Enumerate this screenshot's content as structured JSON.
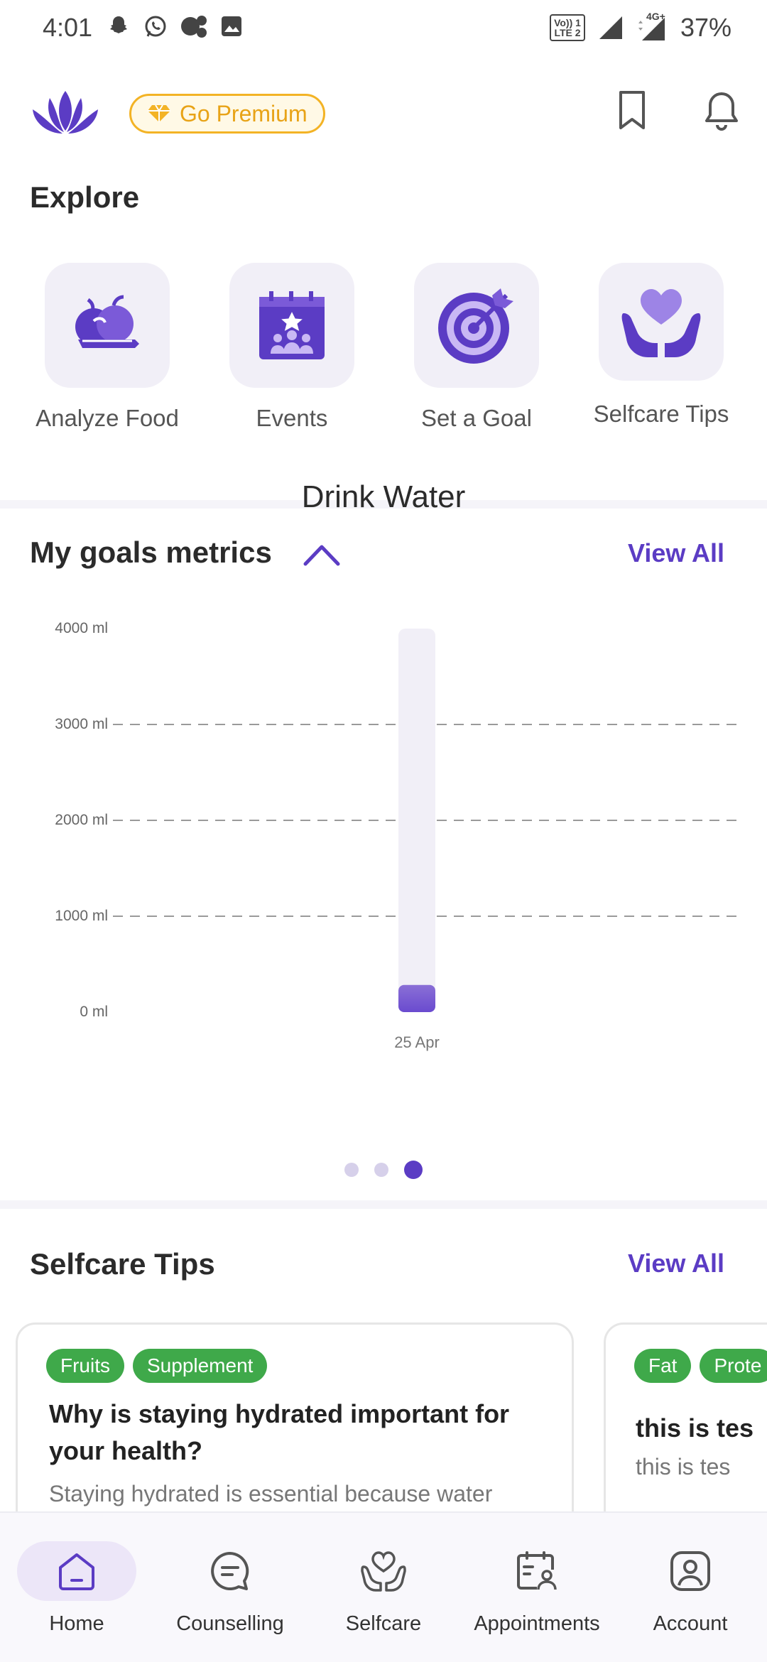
{
  "status_bar": {
    "time": "4:01",
    "lte_badge_line1": "Vo)) 1",
    "lte_badge_line2": "LTE 2",
    "network": "4G+",
    "battery": "37%"
  },
  "top_bar": {
    "premium_label": "Go Premium",
    "brand_color": "#5b3cc4",
    "premium_color": "#f3b325"
  },
  "explore": {
    "title": "Explore",
    "items": [
      {
        "label": "Analyze Food",
        "icon": "fruit-basket-icon"
      },
      {
        "label": "Events",
        "icon": "calendar-event-icon"
      },
      {
        "label": "Set a Goal",
        "icon": "target-icon"
      },
      {
        "label": "Selfcare Tips",
        "icon": "heart-hands-icon"
      }
    ]
  },
  "goals": {
    "title": "My goals metrics",
    "view_all": "View All",
    "chart_title": "Drink Water",
    "pager": {
      "count": 3,
      "active_index": 3
    }
  },
  "chart_data": {
    "type": "bar",
    "title": "Drink Water",
    "categories": [
      "25 Apr"
    ],
    "series": [
      {
        "values": [
          150
        ]
      }
    ],
    "target": 4000,
    "ylim": [
      0,
      4000
    ],
    "yticks": [
      "0 ml",
      "1000 ml",
      "2000 ml",
      "3000 ml",
      "4000 ml"
    ],
    "grid": true,
    "bar_color": "#8a6fd6",
    "track_color": "#f1eff7"
  },
  "selfcare": {
    "title": "Selfcare Tips",
    "view_all": "View All",
    "cards": [
      {
        "tags": [
          "Fruits",
          "Supplement"
        ],
        "title": "Why is staying hydrated important for your health?",
        "desc": "Staying hydrated is essential because water"
      },
      {
        "tags": [
          "Fat",
          "Prote"
        ],
        "title": "this is tes",
        "desc": "this is tes"
      }
    ]
  },
  "bottom_nav": {
    "items": [
      {
        "label": "Home",
        "icon": "home-icon",
        "active": true
      },
      {
        "label": "Counselling",
        "icon": "chat-icon",
        "active": false
      },
      {
        "label": "Selfcare",
        "icon": "heart-hands-icon",
        "active": false
      },
      {
        "label": "Appointments",
        "icon": "calendar-user-icon",
        "active": false
      },
      {
        "label": "Account",
        "icon": "account-icon",
        "active": false
      }
    ]
  }
}
